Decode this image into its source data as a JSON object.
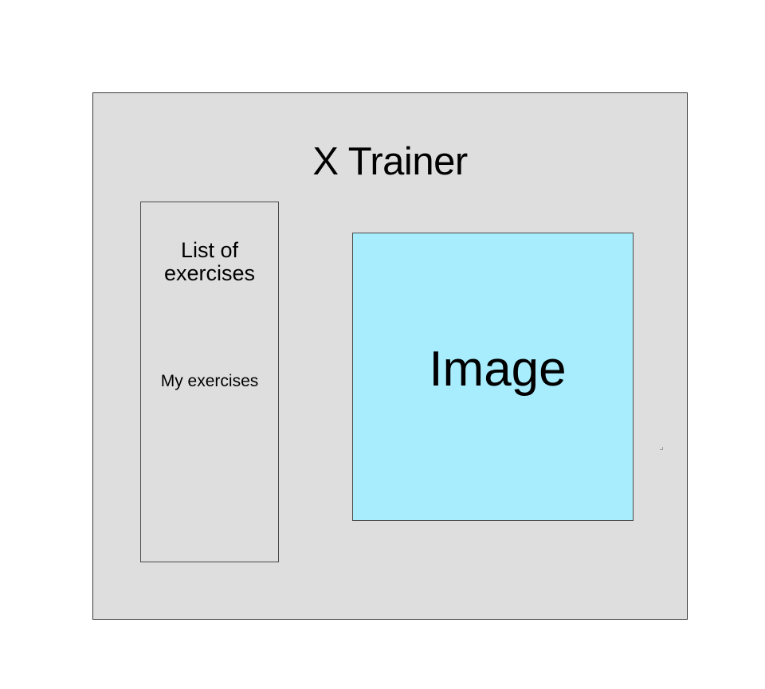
{
  "app": {
    "title": "X Trainer"
  },
  "sidebar": {
    "heading": "List of exercises",
    "items": [
      {
        "label": "My exercises"
      }
    ]
  },
  "main": {
    "image_placeholder_label": "Image"
  },
  "colors": {
    "window_background": "#dedede",
    "image_background": "#a8edfd",
    "border": "#4a4a4a"
  }
}
